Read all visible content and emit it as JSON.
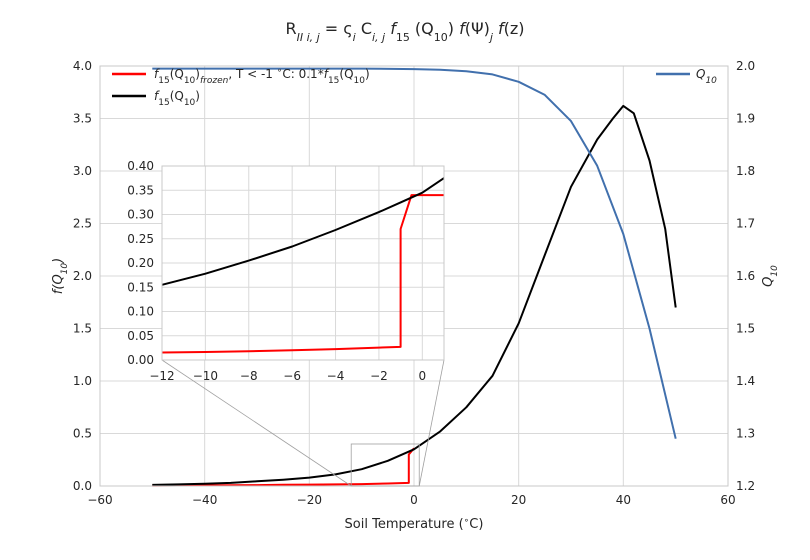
{
  "chart_data": {
    "type": "line",
    "title": "R_{II i,j} = ς_i C_{i,j} f_15 (Q_10) f(Ψ)_j f(z)",
    "xlabel": "Soil Temperature (°C)",
    "ylabel_left": "f(Q10)",
    "ylabel_right": "Q10",
    "xlim": [
      -60,
      60
    ],
    "ylim_left": [
      0,
      4.0
    ],
    "ylim_right": [
      1.2,
      2.0
    ],
    "x_ticks": [
      "−60",
      "−40",
      "−20",
      "0",
      "20",
      "40",
      "60"
    ],
    "y_left_ticks": [
      "0.0",
      "0.5",
      "1.0",
      "1.5",
      "2.0",
      "2.5",
      "3.0",
      "3.5",
      "4.0"
    ],
    "y_right_ticks": [
      "1.2",
      "1.3",
      "1.4",
      "1.5",
      "1.6",
      "1.7",
      "1.8",
      "1.9",
      "2.0"
    ],
    "grid": true,
    "legend_left_position": "top-left",
    "legend_right_position": "top-right",
    "series": [
      {
        "name": "f15(Q10)frozen, T < -1 °C: 0.1*f15(Q10)",
        "axis": "left",
        "color": "#ff0000",
        "x": [
          -50,
          -45,
          -40,
          -35,
          -30,
          -25,
          -20,
          -15,
          -10,
          -5,
          -1,
          -1,
          0
        ],
        "y": [
          0.004,
          0.005,
          0.006,
          0.008,
          0.009,
          0.011,
          0.013,
          0.015,
          0.018,
          0.024,
          0.03,
          0.3,
          0.36
        ]
      },
      {
        "name": "f15(Q10)",
        "axis": "left",
        "color": "#000000",
        "x": [
          -50,
          -45,
          -40,
          -35,
          -30,
          -25,
          -20,
          -15,
          -10,
          -5,
          0,
          5,
          10,
          15,
          20,
          25,
          30,
          35,
          38,
          40,
          42,
          45,
          48,
          50
        ],
        "y": [
          0.01,
          0.015,
          0.022,
          0.03,
          0.045,
          0.06,
          0.08,
          0.11,
          0.16,
          0.24,
          0.35,
          0.52,
          0.75,
          1.05,
          1.55,
          2.2,
          2.85,
          3.3,
          3.5,
          3.62,
          3.55,
          3.1,
          2.45,
          1.7
        ]
      },
      {
        "name": "Q10",
        "axis": "right",
        "color": "#4170ad",
        "x": [
          -50,
          -40,
          -30,
          -20,
          -10,
          0,
          5,
          10,
          15,
          20,
          25,
          30,
          35,
          40,
          45,
          50
        ],
        "y": [
          1.995,
          1.995,
          1.995,
          1.995,
          1.995,
          1.994,
          1.993,
          1.99,
          1.984,
          1.97,
          1.945,
          1.895,
          1.81,
          1.68,
          1.5,
          1.29
        ]
      }
    ],
    "inset": {
      "xlim": [
        -12,
        1
      ],
      "ylim": [
        0,
        0.4
      ],
      "x_ticks": [
        "−12",
        "−10",
        "−8",
        "−6",
        "−4",
        "−2",
        "0"
      ],
      "y_ticks": [
        "0.00",
        "0.05",
        "0.10",
        "0.15",
        "0.20",
        "0.25",
        "0.30",
        "0.35",
        "0.40"
      ],
      "series": [
        {
          "name": "f15(Q10)frozen, T < -1 °C: 0.1*f15(Q10)",
          "color": "#ff0000",
          "x": [
            -12,
            -10,
            -8,
            -6,
            -4,
            -2,
            -1,
            -1,
            -0.5,
            1
          ],
          "y": [
            0.0155,
            0.0165,
            0.018,
            0.02,
            0.0225,
            0.0255,
            0.027,
            0.27,
            0.34,
            0.34
          ]
        },
        {
          "name": "f15(Q10)",
          "color": "#000000",
          "x": [
            -12,
            -10,
            -8,
            -6,
            -4,
            -2,
            -1,
            0,
            1
          ],
          "y": [
            0.155,
            0.178,
            0.205,
            0.234,
            0.268,
            0.305,
            0.325,
            0.345,
            0.375
          ]
        }
      ]
    }
  },
  "colors": {
    "grid": "#d9d9d9",
    "axes_edge": "#c8c8c8",
    "inset_box": "#a0a0a0"
  }
}
